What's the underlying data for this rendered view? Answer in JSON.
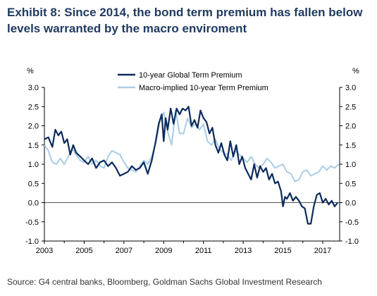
{
  "title": "Exhibit 8: Since 2014, the bond term premium has fallen below levels warranted by the macro enviroment",
  "source": "Source: G4 central banks, Bloomberg, Goldman Sachs Global Investment Research",
  "colors": {
    "dark_series": "#0b2a5c",
    "light_series": "#a9cde6",
    "axis": "#000000",
    "zero_line": "#555555"
  },
  "chart_data": {
    "type": "line",
    "title": "",
    "y_unit_left": "%",
    "y_unit_right": "%",
    "xlim": [
      2003,
      2017.85
    ],
    "ylim": [
      -1.0,
      3.0
    ],
    "x_ticks": [
      2003,
      2005,
      2007,
      2009,
      2011,
      2013,
      2015,
      2017
    ],
    "y_ticks": [
      3.0,
      2.5,
      2.0,
      1.5,
      1.0,
      0.5,
      0.0,
      -0.5,
      -1.0
    ],
    "legend_position": "top-center",
    "zero_line": true,
    "series": [
      {
        "name": "10-year Global Term Premium",
        "color": "#0b2a5c",
        "x": [
          2003.0,
          2003.2,
          2003.4,
          2003.55,
          2003.7,
          2003.85,
          2004.0,
          2004.15,
          2004.3,
          2004.45,
          2004.6,
          2004.8,
          2005.0,
          2005.2,
          2005.4,
          2005.6,
          2005.8,
          2006.0,
          2006.2,
          2006.4,
          2006.6,
          2006.8,
          2007.0,
          2007.2,
          2007.4,
          2007.6,
          2007.8,
          2008.0,
          2008.2,
          2008.4,
          2008.6,
          2008.75,
          2008.9,
          2009.0,
          2009.1,
          2009.2,
          2009.35,
          2009.5,
          2009.65,
          2009.8,
          2009.95,
          2010.1,
          2010.25,
          2010.4,
          2010.55,
          2010.7,
          2010.85,
          2011.0,
          2011.15,
          2011.3,
          2011.45,
          2011.6,
          2011.75,
          2011.9,
          2012.05,
          2012.2,
          2012.35,
          2012.5,
          2012.65,
          2012.8,
          2012.95,
          2013.1,
          2013.25,
          2013.4,
          2013.55,
          2013.7,
          2013.85,
          2014.0,
          2014.15,
          2014.3,
          2014.45,
          2014.6,
          2014.75,
          2014.9,
          2015.0,
          2015.1,
          2015.2,
          2015.35,
          2015.5,
          2015.65,
          2015.8,
          2015.95,
          2016.1,
          2016.25,
          2016.4,
          2016.55,
          2016.7,
          2016.85,
          2017.0,
          2017.15,
          2017.3,
          2017.45,
          2017.6,
          2017.75
        ],
        "values": [
          1.65,
          1.7,
          1.45,
          1.9,
          1.75,
          1.85,
          1.55,
          1.65,
          1.25,
          1.5,
          1.3,
          1.2,
          1.1,
          1.0,
          1.15,
          0.9,
          1.05,
          1.1,
          0.95,
          1.05,
          0.9,
          0.7,
          0.75,
          0.8,
          0.95,
          0.85,
          0.9,
          1.05,
          0.75,
          1.1,
          1.6,
          2.05,
          2.3,
          1.6,
          2.2,
          1.9,
          2.45,
          2.05,
          2.45,
          2.3,
          2.45,
          2.4,
          2.5,
          2.0,
          2.15,
          1.95,
          2.4,
          2.2,
          2.1,
          1.8,
          1.95,
          1.5,
          1.3,
          1.55,
          1.25,
          1.1,
          1.6,
          1.2,
          1.5,
          1.0,
          1.2,
          0.9,
          0.75,
          0.6,
          1.0,
          0.65,
          0.95,
          0.8,
          0.9,
          0.6,
          0.75,
          0.5,
          0.55,
          0.3,
          -0.1,
          0.15,
          0.1,
          0.25,
          0.05,
          0.15,
          0.05,
          -0.1,
          -0.15,
          -0.55,
          -0.55,
          -0.1,
          0.2,
          0.25,
          0.0,
          0.1,
          -0.05,
          0.05,
          -0.1,
          0.0
        ]
      },
      {
        "name": "Macro-implied 10-year Term Premium",
        "color": "#a9cde6",
        "x": [
          2003.0,
          2003.2,
          2003.4,
          2003.6,
          2003.8,
          2004.0,
          2004.2,
          2004.4,
          2004.6,
          2004.8,
          2005.0,
          2005.2,
          2005.4,
          2005.6,
          2005.8,
          2006.0,
          2006.2,
          2006.4,
          2006.6,
          2006.8,
          2007.0,
          2007.2,
          2007.4,
          2007.6,
          2007.8,
          2008.0,
          2008.2,
          2008.4,
          2008.6,
          2008.8,
          2009.0,
          2009.2,
          2009.4,
          2009.6,
          2009.8,
          2010.0,
          2010.2,
          2010.4,
          2010.6,
          2010.8,
          2011.0,
          2011.2,
          2011.4,
          2011.6,
          2011.8,
          2012.0,
          2012.2,
          2012.4,
          2012.6,
          2012.8,
          2013.0,
          2013.2,
          2013.4,
          2013.6,
          2013.8,
          2014.0,
          2014.2,
          2014.4,
          2014.6,
          2014.8,
          2015.0,
          2015.2,
          2015.4,
          2015.6,
          2015.8,
          2016.0,
          2016.2,
          2016.4,
          2016.6,
          2016.8,
          2017.0,
          2017.2,
          2017.4,
          2017.6,
          2017.8
        ],
        "values": [
          1.5,
          1.35,
          1.05,
          1.0,
          1.15,
          1.0,
          1.2,
          1.4,
          1.25,
          1.1,
          1.05,
          1.2,
          1.0,
          1.1,
          0.95,
          0.9,
          1.2,
          1.35,
          1.3,
          1.25,
          1.05,
          0.9,
          0.85,
          0.8,
          0.95,
          1.1,
          1.0,
          1.2,
          1.55,
          2.1,
          2.35,
          1.85,
          1.5,
          2.4,
          1.8,
          1.8,
          2.2,
          1.95,
          2.05,
          1.9,
          2.05,
          1.6,
          1.5,
          1.65,
          1.4,
          1.3,
          1.25,
          1.1,
          1.35,
          1.25,
          1.15,
          1.05,
          1.2,
          1.0,
          0.9,
          1.0,
          1.15,
          1.05,
          0.9,
          0.95,
          1.0,
          0.8,
          0.75,
          0.55,
          0.6,
          0.8,
          0.85,
          0.7,
          0.75,
          0.8,
          0.95,
          0.85,
          0.95,
          0.9,
          1.0
        ]
      }
    ]
  }
}
